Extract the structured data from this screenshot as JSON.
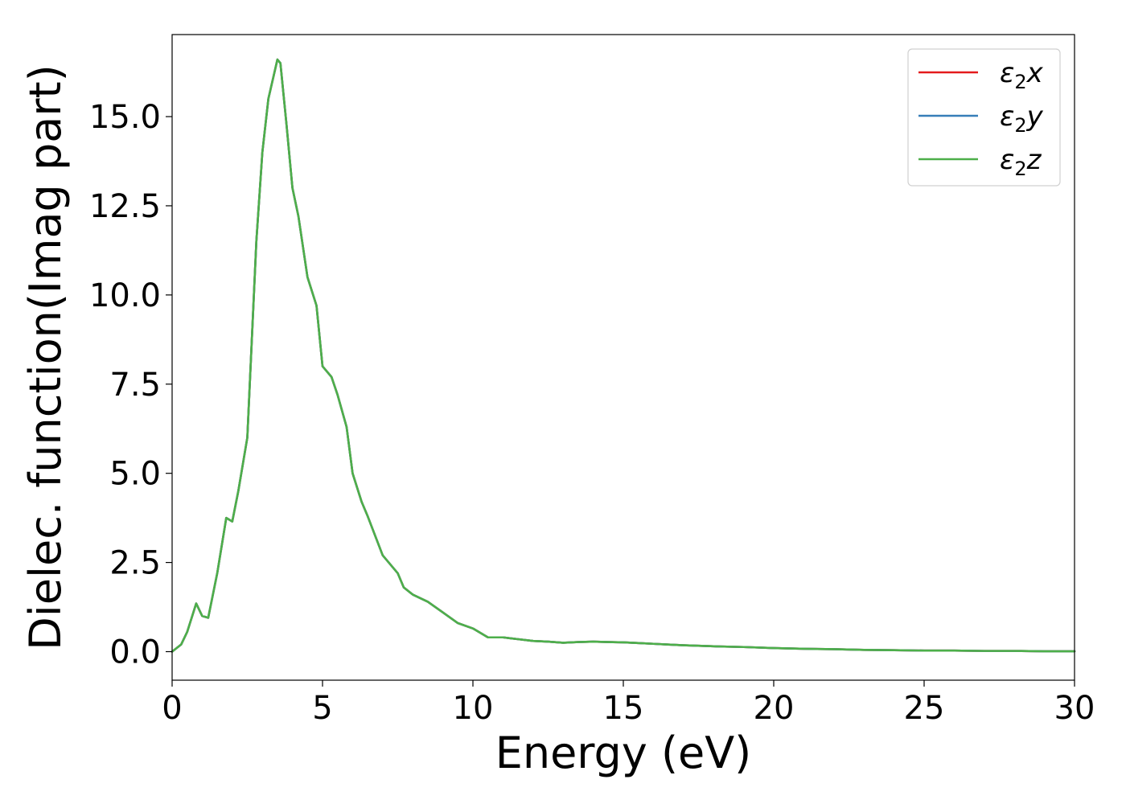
{
  "chart_data": {
    "type": "line",
    "xlabel": "Energy (eV)",
    "ylabel": "Dielec. function(Imag part)",
    "xlim": [
      0,
      30
    ],
    "ylim": [
      -0.8,
      17.3
    ],
    "xticks": [
      0,
      5,
      10,
      15,
      20,
      25,
      30
    ],
    "xtick_labels": [
      "0",
      "5",
      "10",
      "15",
      "20",
      "25",
      "30"
    ],
    "yticks": [
      0.0,
      2.5,
      5.0,
      7.5,
      10.0,
      12.5,
      15.0
    ],
    "ytick_labels": [
      "0.0",
      "2.5",
      "5.0",
      "7.5",
      "10.0",
      "12.5",
      "15.0"
    ],
    "grid": false,
    "legend_position": "top-right",
    "x": [
      0,
      0.3,
      0.5,
      0.8,
      1.0,
      1.2,
      1.5,
      1.8,
      2.0,
      2.2,
      2.5,
      2.8,
      3.0,
      3.2,
      3.5,
      3.6,
      3.8,
      4.0,
      4.2,
      4.5,
      4.8,
      5.0,
      5.3,
      5.5,
      5.8,
      6.0,
      6.3,
      6.5,
      7.0,
      7.5,
      7.7,
      8.0,
      8.5,
      9.0,
      9.5,
      10.0,
      10.5,
      11.0,
      11.5,
      12.0,
      12.5,
      13.0,
      13.5,
      14.0,
      14.5,
      15.0,
      15.5,
      16.0,
      16.5,
      17.0,
      18.0,
      19.0,
      20.0,
      21.0,
      22.0,
      23.0,
      24.0,
      25.0,
      26.0,
      27.0,
      28.0,
      29.0,
      30.0
    ],
    "series": [
      {
        "name": "ε2x",
        "color": "#e41a1c",
        "values": [
          0.0,
          0.2,
          0.55,
          1.35,
          1.0,
          0.95,
          2.2,
          3.75,
          3.65,
          4.5,
          6.0,
          11.5,
          14.0,
          15.5,
          16.6,
          16.5,
          14.8,
          13.0,
          12.2,
          10.5,
          9.7,
          8.0,
          7.7,
          7.2,
          6.3,
          5.0,
          4.2,
          3.8,
          2.7,
          2.2,
          1.8,
          1.6,
          1.4,
          1.1,
          0.8,
          0.65,
          0.4,
          0.4,
          0.35,
          0.3,
          0.28,
          0.25,
          0.27,
          0.28,
          0.27,
          0.26,
          0.24,
          0.22,
          0.2,
          0.18,
          0.15,
          0.13,
          0.1,
          0.08,
          0.07,
          0.05,
          0.04,
          0.03,
          0.03,
          0.02,
          0.02,
          0.01,
          0.01
        ]
      },
      {
        "name": "ε2y",
        "color": "#377eb8",
        "values": [
          0.0,
          0.2,
          0.55,
          1.35,
          1.0,
          0.95,
          2.2,
          3.75,
          3.65,
          4.5,
          6.0,
          11.5,
          14.0,
          15.5,
          16.6,
          16.5,
          14.8,
          13.0,
          12.2,
          10.5,
          9.7,
          8.0,
          7.7,
          7.2,
          6.3,
          5.0,
          4.2,
          3.8,
          2.7,
          2.2,
          1.8,
          1.6,
          1.4,
          1.1,
          0.8,
          0.65,
          0.4,
          0.4,
          0.35,
          0.3,
          0.28,
          0.25,
          0.27,
          0.28,
          0.27,
          0.26,
          0.24,
          0.22,
          0.2,
          0.18,
          0.15,
          0.13,
          0.1,
          0.08,
          0.07,
          0.05,
          0.04,
          0.03,
          0.03,
          0.02,
          0.02,
          0.01,
          0.01
        ]
      },
      {
        "name": "ε2z",
        "color": "#4daf4a",
        "values": [
          0.0,
          0.2,
          0.55,
          1.35,
          1.0,
          0.95,
          2.2,
          3.75,
          3.65,
          4.5,
          6.0,
          11.5,
          14.0,
          15.5,
          16.6,
          16.5,
          14.8,
          13.0,
          12.2,
          10.5,
          9.7,
          8.0,
          7.7,
          7.2,
          6.3,
          5.0,
          4.2,
          3.8,
          2.7,
          2.2,
          1.8,
          1.6,
          1.4,
          1.1,
          0.8,
          0.65,
          0.4,
          0.4,
          0.35,
          0.3,
          0.28,
          0.25,
          0.27,
          0.28,
          0.27,
          0.26,
          0.24,
          0.22,
          0.2,
          0.18,
          0.15,
          0.13,
          0.1,
          0.08,
          0.07,
          0.05,
          0.04,
          0.03,
          0.03,
          0.02,
          0.02,
          0.01,
          0.01
        ]
      }
    ]
  }
}
